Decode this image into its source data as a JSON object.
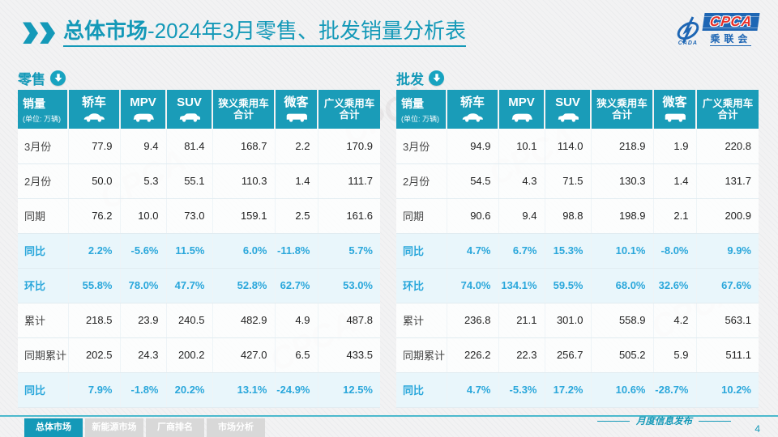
{
  "slide_title": {
    "bold": "总体市场",
    "rest": "-2024年3月零售、批发销量分析表"
  },
  "logo": {
    "cpca": "CPCA",
    "cada": "CADA",
    "org": "乘联会"
  },
  "first_column": {
    "title": "销量",
    "unit": "(单位: 万辆)"
  },
  "columns": [
    {
      "label": "轿车",
      "icon": "sedan-icon"
    },
    {
      "label": "MPV",
      "icon": "mpv-icon"
    },
    {
      "label": "SUV",
      "icon": "suv-icon"
    },
    {
      "label": "狭义乘用车",
      "label2": "合计"
    },
    {
      "label": "微客",
      "icon": "van-icon"
    },
    {
      "label": "广义乘用车",
      "label2": "合计"
    }
  ],
  "tables": [
    {
      "section_title": "零售",
      "section_icon": "arrow-down-circle-icon",
      "rows": [
        {
          "label": "3月份",
          "pct": false,
          "values": [
            "77.9",
            "9.4",
            "81.4",
            "168.7",
            "2.2",
            "170.9"
          ]
        },
        {
          "label": "2月份",
          "pct": false,
          "values": [
            "50.0",
            "5.3",
            "55.1",
            "110.3",
            "1.4",
            "111.7"
          ]
        },
        {
          "label": "同期",
          "pct": false,
          "values": [
            "76.2",
            "10.0",
            "73.0",
            "159.1",
            "2.5",
            "161.6"
          ]
        },
        {
          "label": "同比",
          "pct": true,
          "values": [
            "2.2%",
            "-5.6%",
            "11.5%",
            "6.0%",
            "-11.8%",
            "5.7%"
          ]
        },
        {
          "label": "环比",
          "pct": true,
          "values": [
            "55.8%",
            "78.0%",
            "47.7%",
            "52.8%",
            "62.7%",
            "53.0%"
          ]
        },
        {
          "label": "累计",
          "pct": false,
          "values": [
            "218.5",
            "23.9",
            "240.5",
            "482.9",
            "4.9",
            "487.8"
          ]
        },
        {
          "label": "同期累计",
          "pct": false,
          "values": [
            "202.5",
            "24.3",
            "200.2",
            "427.0",
            "6.5",
            "433.5"
          ]
        },
        {
          "label": "同比",
          "pct": true,
          "values": [
            "7.9%",
            "-1.8%",
            "20.2%",
            "13.1%",
            "-24.9%",
            "12.5%"
          ]
        }
      ]
    },
    {
      "section_title": "批发",
      "section_icon": "arrow-down-circle-icon",
      "rows": [
        {
          "label": "3月份",
          "pct": false,
          "values": [
            "94.9",
            "10.1",
            "114.0",
            "218.9",
            "1.9",
            "220.8"
          ]
        },
        {
          "label": "2月份",
          "pct": false,
          "values": [
            "54.5",
            "4.3",
            "71.5",
            "130.3",
            "1.4",
            "131.7"
          ]
        },
        {
          "label": "同期",
          "pct": false,
          "values": [
            "90.6",
            "9.4",
            "98.8",
            "198.9",
            "2.1",
            "200.9"
          ]
        },
        {
          "label": "同比",
          "pct": true,
          "values": [
            "4.7%",
            "6.7%",
            "15.3%",
            "10.1%",
            "-8.0%",
            "9.9%"
          ]
        },
        {
          "label": "环比",
          "pct": true,
          "values": [
            "74.0%",
            "134.1%",
            "59.5%",
            "68.0%",
            "32.6%",
            "67.6%"
          ]
        },
        {
          "label": "累计",
          "pct": false,
          "values": [
            "236.8",
            "21.1",
            "301.0",
            "558.9",
            "4.2",
            "563.1"
          ]
        },
        {
          "label": "同期累计",
          "pct": false,
          "values": [
            "226.2",
            "22.3",
            "256.7",
            "505.2",
            "5.9",
            "511.1"
          ]
        },
        {
          "label": "同比",
          "pct": true,
          "values": [
            "4.7%",
            "-5.3%",
            "17.2%",
            "10.6%",
            "-28.7%",
            "10.2%"
          ]
        }
      ]
    }
  ],
  "watermark": {
    "text": "CPCA"
  },
  "footer": {
    "tabs": [
      {
        "label": "总体市场",
        "active": true
      },
      {
        "label": "新能源市场",
        "active": false
      },
      {
        "label": "厂商排名",
        "active": false
      },
      {
        "label": "市场分析",
        "active": false
      }
    ],
    "caption": "月度信息发布",
    "page": "4"
  },
  "colors": {
    "teal": "#1a9cb8",
    "pct_blue": "#2aa7db",
    "logo_blue": "#1e66b4",
    "logo_red": "#e8312a"
  }
}
